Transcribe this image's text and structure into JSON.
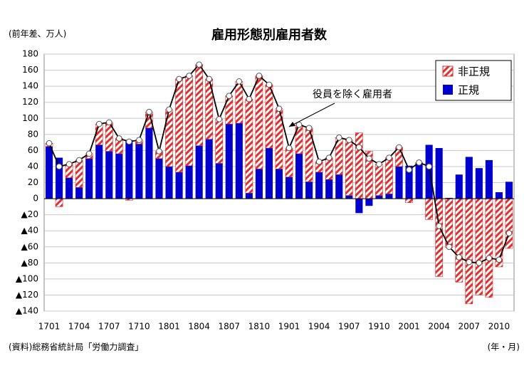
{
  "chart_data": {
    "type": "bar",
    "title": "雇用形態別雇用者数",
    "y_label": "(前年差、万人)",
    "x_label": "(年・月)",
    "source": "(資料)総務省統計局「労働力調査」",
    "stacked": true,
    "grid": true,
    "legend": "upper right",
    "categories": [
      "1701",
      null,
      null,
      "1704",
      null,
      null,
      "1707",
      null,
      null,
      "1710",
      null,
      null,
      "1801",
      null,
      null,
      "1804",
      null,
      null,
      "1807",
      null,
      null,
      "1810",
      null,
      null,
      "1901",
      null,
      null,
      "1904",
      null,
      null,
      "1907",
      null,
      null,
      "1910",
      null,
      null,
      "2001",
      null,
      null,
      "2004",
      null,
      null,
      "2007",
      null,
      null,
      "2010",
      null
    ],
    "series": [
      {
        "name": "正規",
        "color": "#0000cc",
        "values": [
          65,
          51,
          26,
          14,
          50,
          67,
          59,
          56,
          73,
          68,
          88,
          50,
          40,
          33,
          41,
          66,
          74,
          44,
          93,
          94,
          7,
          37,
          63,
          37,
          27,
          56,
          21,
          33,
          24,
          30,
          4,
          -18,
          -9,
          4,
          6,
          40,
          41,
          44,
          67,
          63,
          1,
          30,
          52,
          38,
          48,
          8,
          21
        ]
      },
      {
        "name": "非正規",
        "color": "#e03030",
        "values": [
          4,
          -10,
          17,
          34,
          6,
          26,
          36,
          19,
          -2,
          5,
          20,
          9,
          71,
          116,
          112,
          101,
          75,
          55,
          35,
          52,
          117,
          116,
          79,
          75,
          36,
          36,
          67,
          13,
          27,
          46,
          69,
          82,
          59,
          39,
          45,
          24,
          -5,
          1,
          -26,
          -97,
          -61,
          -104,
          -131,
          -120,
          -123,
          -85,
          -62
        ]
      },
      {
        "name": "役員を除く雇用者",
        "type": "line",
        "color": "#000000",
        "values": [
          69,
          40,
          43,
          48,
          56,
          93,
          95,
          75,
          71,
          73,
          108,
          59,
          111,
          149,
          153,
          167,
          149,
          99,
          128,
          146,
          124,
          153,
          142,
          112,
          63,
          92,
          88,
          46,
          51,
          76,
          73,
          64,
          50,
          43,
          51,
          64,
          36,
          45,
          40,
          -34,
          -60,
          -73,
          -79,
          -80,
          -74,
          -76,
          -43
        ]
      }
    ],
    "ylim": [
      -140,
      180
    ],
    "yticks": [
      180,
      160,
      140,
      120,
      100,
      80,
      60,
      40,
      20,
      0,
      {
        "value": -20,
        "label": "▲20"
      },
      {
        "value": -40,
        "label": "▲40"
      },
      {
        "value": -60,
        "label": "▲60"
      },
      {
        "value": -80,
        "label": "▲80"
      },
      {
        "value": -100,
        "label": "▲100"
      },
      {
        "value": -120,
        "label": "▲120"
      },
      {
        "value": -140,
        "label": "▲140"
      }
    ]
  }
}
